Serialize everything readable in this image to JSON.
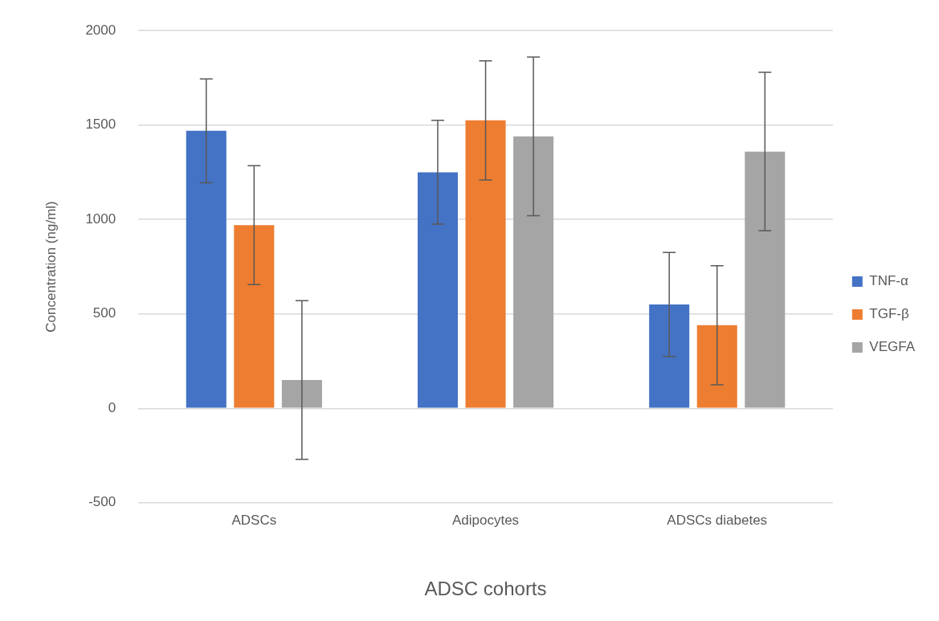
{
  "chart_data": {
    "type": "bar",
    "categories": [
      "ADSCs",
      "Adipocytes",
      "ADSCs diabetes"
    ],
    "xlabel": "ADSC cohorts",
    "ylabel": "Concentration (ng/ml)",
    "series": [
      {
        "name": "TNF-α",
        "color": "#4472c4",
        "values": [
          1470,
          1250,
          550
        ],
        "errors": [
          275,
          275,
          275
        ]
      },
      {
        "name": "TGF-β",
        "color": "#ed7d31",
        "values": [
          970,
          1525,
          440
        ],
        "errors": [
          315,
          315,
          315
        ]
      },
      {
        "name": "VEGFA",
        "color": "#a5a5a5",
        "values": [
          150,
          1440,
          1360
        ],
        "errors": [
          420,
          420,
          420
        ]
      }
    ],
    "ylim": [
      -500,
      2000
    ],
    "yticks": [
      -500,
      0,
      500,
      1000,
      1500,
      2000
    ],
    "grid": "y",
    "legend": "right"
  }
}
